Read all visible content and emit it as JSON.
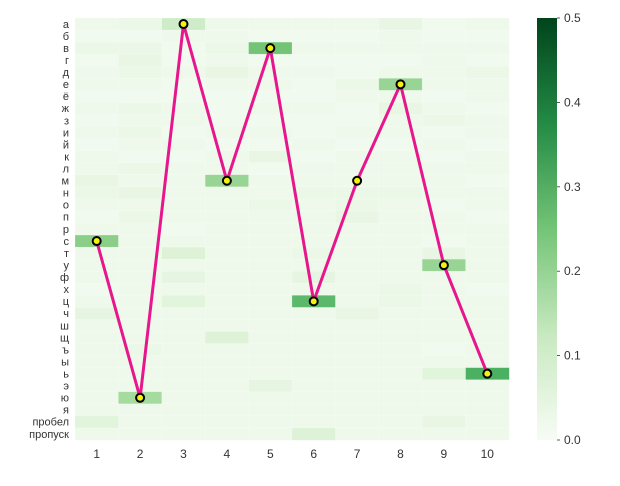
{
  "chart_data": {
    "type": "heatmap",
    "title": "",
    "xlabel": "",
    "ylabel": "",
    "x_categories": [
      "1",
      "2",
      "3",
      "4",
      "5",
      "6",
      "7",
      "8",
      "9",
      "10"
    ],
    "y_categories": [
      "а",
      "б",
      "в",
      "г",
      "д",
      "е",
      "ё",
      "ж",
      "з",
      "и",
      "й",
      "к",
      "л",
      "м",
      "н",
      "о",
      "п",
      "р",
      "с",
      "т",
      "у",
      "ф",
      "х",
      "ц",
      "ч",
      "ш",
      "щ",
      "ъ",
      "ы",
      "ь",
      "э",
      "ю",
      "я",
      "пробел",
      "пропуск"
    ],
    "colorbar": {
      "range": [
        0.0,
        0.5
      ],
      "ticks": [
        "0.0",
        "0.1",
        "0.2",
        "0.3",
        "0.4",
        "0.5"
      ],
      "colormap": "Greens"
    },
    "path": {
      "color": "#e8168c",
      "marker_fill": "#f2f20d",
      "marker_edge": "#000000",
      "points": [
        {
          "x": "1",
          "y": "с"
        },
        {
          "x": "2",
          "y": "ю"
        },
        {
          "x": "3",
          "y": "а"
        },
        {
          "x": "4",
          "y": "м"
        },
        {
          "x": "5",
          "y": "в"
        },
        {
          "x": "6",
          "y": "ц"
        },
        {
          "x": "7",
          "y": "м"
        },
        {
          "x": "8",
          "y": "е"
        },
        {
          "x": "9",
          "y": "у"
        },
        {
          "x": "10",
          "y": "ь"
        }
      ]
    },
    "values": [
      [
        0.03,
        0.04,
        0.11,
        0.03,
        0.03,
        0.03,
        0.03,
        0.05,
        0.02,
        0.03
      ],
      [
        0.02,
        0.02,
        0.03,
        0.03,
        0.02,
        0.02,
        0.02,
        0.03,
        0.02,
        0.02
      ],
      [
        0.04,
        0.04,
        0.02,
        0.04,
        0.25,
        0.03,
        0.03,
        0.03,
        0.03,
        0.03
      ],
      [
        0.02,
        0.05,
        0.02,
        0.03,
        0.02,
        0.02,
        0.02,
        0.02,
        0.03,
        0.02
      ],
      [
        0.03,
        0.04,
        0.03,
        0.05,
        0.03,
        0.03,
        0.02,
        0.03,
        0.03,
        0.04
      ],
      [
        0.03,
        0.03,
        0.02,
        0.03,
        0.03,
        0.02,
        0.04,
        0.2,
        0.03,
        0.03
      ],
      [
        0.02,
        0.02,
        0.02,
        0.02,
        0.02,
        0.02,
        0.03,
        0.03,
        0.02,
        0.03
      ],
      [
        0.03,
        0.04,
        0.03,
        0.02,
        0.03,
        0.03,
        0.02,
        0.05,
        0.03,
        0.02
      ],
      [
        0.02,
        0.03,
        0.03,
        0.02,
        0.02,
        0.02,
        0.02,
        0.03,
        0.04,
        0.03
      ],
      [
        0.03,
        0.04,
        0.02,
        0.03,
        0.03,
        0.02,
        0.03,
        0.03,
        0.02,
        0.03
      ],
      [
        0.02,
        0.03,
        0.03,
        0.02,
        0.02,
        0.03,
        0.02,
        0.02,
        0.03,
        0.02
      ],
      [
        0.03,
        0.02,
        0.02,
        0.03,
        0.05,
        0.02,
        0.03,
        0.03,
        0.02,
        0.03
      ],
      [
        0.03,
        0.04,
        0.03,
        0.03,
        0.02,
        0.03,
        0.03,
        0.03,
        0.03,
        0.03
      ],
      [
        0.05,
        0.03,
        0.03,
        0.2,
        0.03,
        0.03,
        0.03,
        0.03,
        0.03,
        0.02
      ],
      [
        0.04,
        0.05,
        0.03,
        0.03,
        0.03,
        0.04,
        0.04,
        0.04,
        0.03,
        0.03
      ],
      [
        0.03,
        0.03,
        0.03,
        0.03,
        0.04,
        0.03,
        0.04,
        0.03,
        0.02,
        0.03
      ],
      [
        0.02,
        0.04,
        0.03,
        0.03,
        0.03,
        0.03,
        0.05,
        0.03,
        0.03,
        0.02
      ],
      [
        0.03,
        0.03,
        0.02,
        0.03,
        0.03,
        0.03,
        0.03,
        0.03,
        0.03,
        0.03
      ],
      [
        0.22,
        0.03,
        0.03,
        0.03,
        0.03,
        0.03,
        0.03,
        0.03,
        0.02,
        0.03
      ],
      [
        0.03,
        0.03,
        0.08,
        0.03,
        0.03,
        0.04,
        0.03,
        0.03,
        0.05,
        0.03
      ],
      [
        0.03,
        0.03,
        0.03,
        0.03,
        0.03,
        0.03,
        0.03,
        0.03,
        0.2,
        0.03
      ],
      [
        0.03,
        0.03,
        0.06,
        0.03,
        0.03,
        0.06,
        0.03,
        0.03,
        0.03,
        0.03
      ],
      [
        0.02,
        0.03,
        0.03,
        0.03,
        0.03,
        0.03,
        0.03,
        0.04,
        0.03,
        0.02
      ],
      [
        0.03,
        0.03,
        0.07,
        0.03,
        0.03,
        0.28,
        0.03,
        0.04,
        0.03,
        0.03
      ],
      [
        0.06,
        0.03,
        0.03,
        0.03,
        0.03,
        0.03,
        0.05,
        0.03,
        0.03,
        0.03
      ],
      [
        0.03,
        0.03,
        0.03,
        0.03,
        0.03,
        0.03,
        0.03,
        0.03,
        0.03,
        0.03
      ],
      [
        0.03,
        0.03,
        0.03,
        0.08,
        0.03,
        0.03,
        0.03,
        0.03,
        0.03,
        0.03
      ],
      [
        0.03,
        0.04,
        0.03,
        0.03,
        0.03,
        0.03,
        0.03,
        0.03,
        0.02,
        0.03
      ],
      [
        0.03,
        0.03,
        0.03,
        0.03,
        0.03,
        0.03,
        0.03,
        0.03,
        0.03,
        0.03
      ],
      [
        0.03,
        0.03,
        0.03,
        0.03,
        0.03,
        0.03,
        0.03,
        0.03,
        0.07,
        0.3
      ],
      [
        0.03,
        0.03,
        0.03,
        0.03,
        0.06,
        0.03,
        0.03,
        0.03,
        0.03,
        0.03
      ],
      [
        0.03,
        0.18,
        0.03,
        0.03,
        0.03,
        0.03,
        0.03,
        0.03,
        0.03,
        0.03
      ],
      [
        0.03,
        0.03,
        0.03,
        0.03,
        0.03,
        0.03,
        0.03,
        0.03,
        0.03,
        0.03
      ],
      [
        0.07,
        0.03,
        0.03,
        0.03,
        0.03,
        0.03,
        0.03,
        0.03,
        0.05,
        0.03
      ],
      [
        0.03,
        0.03,
        0.03,
        0.03,
        0.03,
        0.08,
        0.03,
        0.03,
        0.03,
        0.03
      ]
    ]
  }
}
